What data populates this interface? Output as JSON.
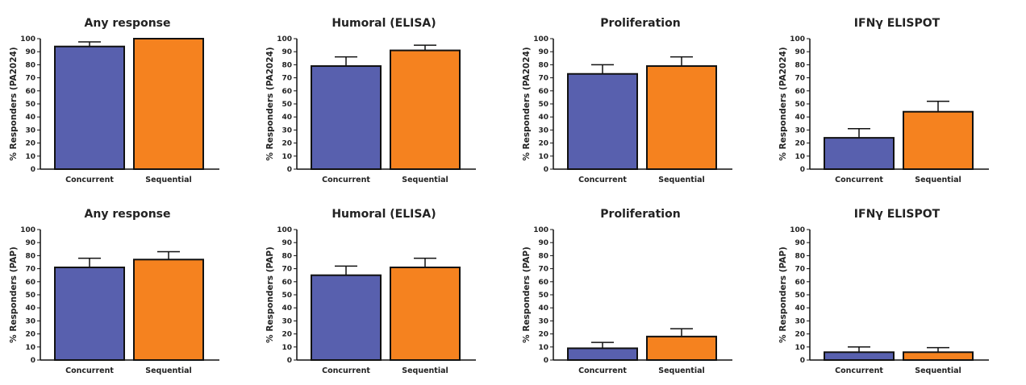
{
  "colors": {
    "concurrent": "#5860AE",
    "sequential": "#F5821F",
    "stroke": "#111111"
  },
  "chart_data": [
    {
      "type": "bar",
      "title": "Any response",
      "ylabel": "% Responders (PA2024)",
      "ylim": [
        0,
        100
      ],
      "yticks": [
        "0",
        "10",
        "20",
        "30",
        "40",
        "50",
        "60",
        "70",
        "80",
        "90",
        "100"
      ],
      "categories": [
        "Concurrent",
        "Sequential"
      ],
      "values": [
        94,
        100
      ],
      "errors": [
        3.5,
        0
      ]
    },
    {
      "type": "bar",
      "title": "Humoral (ELISA)",
      "ylabel": "% Responders (PA2024)",
      "ylim": [
        0,
        100
      ],
      "yticks": [
        "0",
        "10",
        "20",
        "30",
        "40",
        "50",
        "60",
        "70",
        "80",
        "90",
        "100"
      ],
      "categories": [
        "Concurrent",
        "Sequential"
      ],
      "values": [
        79,
        91
      ],
      "errors": [
        7,
        4
      ]
    },
    {
      "type": "bar",
      "title": "Proliferation",
      "ylabel": "% Responders (PA2024)",
      "ylim": [
        0,
        100
      ],
      "yticks": [
        "0",
        "10",
        "20",
        "30",
        "40",
        "50",
        "60",
        "70",
        "80",
        "90",
        "100"
      ],
      "categories": [
        "Concurrent",
        "Sequential"
      ],
      "values": [
        73,
        79
      ],
      "errors": [
        7,
        7
      ]
    },
    {
      "type": "bar",
      "title": "IFNγ ELISPOT",
      "ylabel": "% Responders (PA2024)",
      "ylim": [
        0,
        100
      ],
      "yticks": [
        "0",
        "10",
        "20",
        "30",
        "40",
        "50",
        "60",
        "70",
        "80",
        "90",
        "100"
      ],
      "categories": [
        "Concurrent",
        "Sequential"
      ],
      "values": [
        24,
        44
      ],
      "errors": [
        7,
        8
      ]
    },
    {
      "type": "bar",
      "title": "Any response",
      "ylabel": "% Responders (PAP)",
      "ylim": [
        0,
        100
      ],
      "yticks": [
        "0",
        "10",
        "20",
        "30",
        "40",
        "50",
        "60",
        "70",
        "80",
        "90",
        "100"
      ],
      "categories": [
        "Concurrent",
        "Sequential"
      ],
      "values": [
        71,
        77
      ],
      "errors": [
        7,
        6
      ]
    },
    {
      "type": "bar",
      "title": "Humoral (ELISA)",
      "ylabel": "% Responders (PAP)",
      "ylim": [
        0,
        100
      ],
      "yticks": [
        "0",
        "10",
        "20",
        "30",
        "40",
        "50",
        "60",
        "70",
        "80",
        "90",
        "100"
      ],
      "categories": [
        "Concurrent",
        "Sequential"
      ],
      "values": [
        65,
        71
      ],
      "errors": [
        7,
        7
      ]
    },
    {
      "type": "bar",
      "title": "Proliferation",
      "ylabel": "% Responders (PAP)",
      "ylim": [
        0,
        100
      ],
      "yticks": [
        "0",
        "10",
        "20",
        "30",
        "40",
        "50",
        "60",
        "70",
        "80",
        "90",
        "100"
      ],
      "categories": [
        "Concurrent",
        "Sequential"
      ],
      "values": [
        9,
        18
      ],
      "errors": [
        4.5,
        6
      ]
    },
    {
      "type": "bar",
      "title": "IFNγ ELISPOT",
      "ylabel": "% Responders (PAP)",
      "ylim": [
        0,
        100
      ],
      "yticks": [
        "0",
        "10",
        "20",
        "30",
        "40",
        "50",
        "60",
        "70",
        "80",
        "90",
        "100"
      ],
      "categories": [
        "Concurrent",
        "Sequential"
      ],
      "values": [
        6,
        6
      ],
      "errors": [
        4,
        3.5
      ]
    }
  ]
}
